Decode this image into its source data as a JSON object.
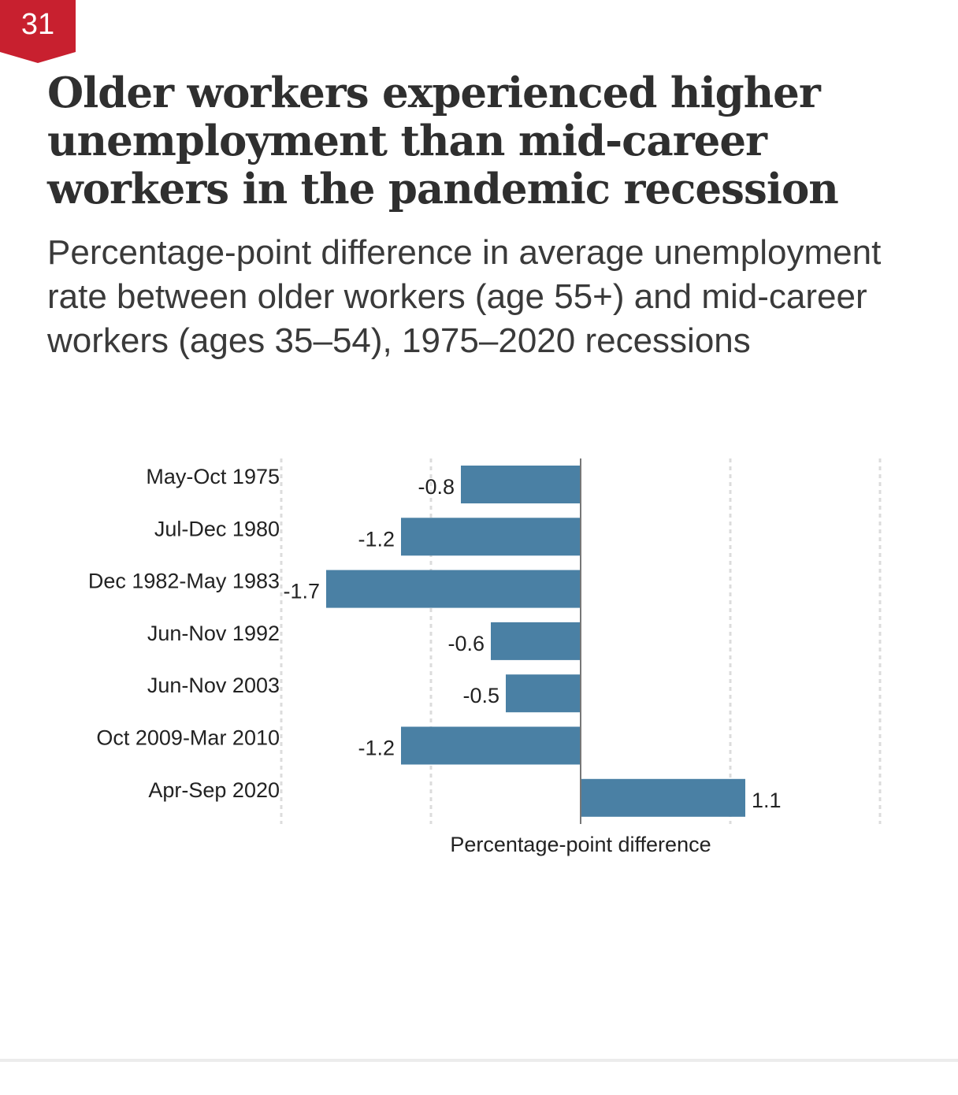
{
  "badge": {
    "number": "31",
    "color": "#c8202f"
  },
  "title": "Older workers experienced higher unemployment than mid-career workers in the pandemic recession",
  "subtitle": "Percentage-point difference in average unemployment rate between older workers (age 55+) and mid-career workers (ages 35–54), 1975–2020 recessions",
  "chart_data": {
    "type": "bar",
    "orientation": "horizontal",
    "categories": [
      "May-Oct 1975",
      "Jul-Dec 1980",
      "Dec 1982-May 1983",
      "Jun-Nov 1992",
      "Jun-Nov 2003",
      "Oct 2009-Mar 2010",
      "Apr-Sep 2020"
    ],
    "values": [
      -0.8,
      -1.2,
      -1.7,
      -0.6,
      -0.5,
      -1.2,
      1.1
    ],
    "value_labels": [
      "-0.8",
      "-1.2",
      "-1.7",
      "-0.6",
      "-0.5",
      "-1.2",
      "1.1"
    ],
    "xlabel": "Percentage-point difference",
    "xlim": [
      -2,
      2
    ],
    "gridlines": [
      -2,
      -1,
      1,
      2
    ],
    "grid": true,
    "bar_color": "#4a80a4"
  }
}
